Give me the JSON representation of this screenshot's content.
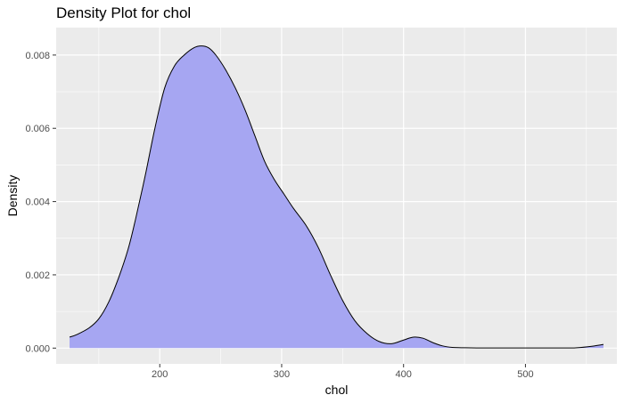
{
  "chart_data": {
    "type": "area",
    "title": "Density Plot for chol",
    "xlabel": "chol",
    "ylabel": "Density",
    "xlim": [
      115,
      575
    ],
    "ylim": [
      -0.00043,
      0.00875
    ],
    "x_ticks": [
      200,
      300,
      400,
      500
    ],
    "y_ticks": [
      0.0,
      0.002,
      0.004,
      0.006,
      0.008
    ],
    "y_tick_labels": [
      "0.000",
      "0.002",
      "0.004",
      "0.006",
      "0.008"
    ],
    "grid": true,
    "fill_color": "#A6A6F2",
    "line_color": "#000000",
    "panel_background": "#EBEBEB",
    "grid_color": "#FFFFFF",
    "series": [
      {
        "x": [
          126,
          132,
          142,
          150,
          158,
          166,
          174,
          180,
          188,
          196,
          204,
          212,
          220,
          228,
          234,
          240,
          246,
          254,
          262,
          270,
          278,
          286,
          294,
          302,
          310,
          320,
          330,
          340,
          350,
          360,
          370,
          380,
          390,
          400,
          408,
          416,
          424,
          432,
          440,
          450,
          460,
          480,
          500,
          520,
          540,
          552,
          564
        ],
        "y": [
          0.0003,
          0.00037,
          0.00055,
          0.0008,
          0.00125,
          0.0019,
          0.0027,
          0.0035,
          0.0047,
          0.006,
          0.0071,
          0.0077,
          0.008,
          0.0082,
          0.00825,
          0.0082,
          0.008,
          0.0076,
          0.0071,
          0.0065,
          0.0058,
          0.0051,
          0.0046,
          0.0042,
          0.0038,
          0.00335,
          0.00275,
          0.002,
          0.0013,
          0.00075,
          0.0004,
          0.00018,
          0.00012,
          0.00022,
          0.0003,
          0.00027,
          0.00015,
          6e-05,
          2e-05,
          1e-05,
          5e-06,
          5e-06,
          5e-06,
          5e-06,
          5e-06,
          4e-05,
          0.0001
        ]
      }
    ]
  }
}
